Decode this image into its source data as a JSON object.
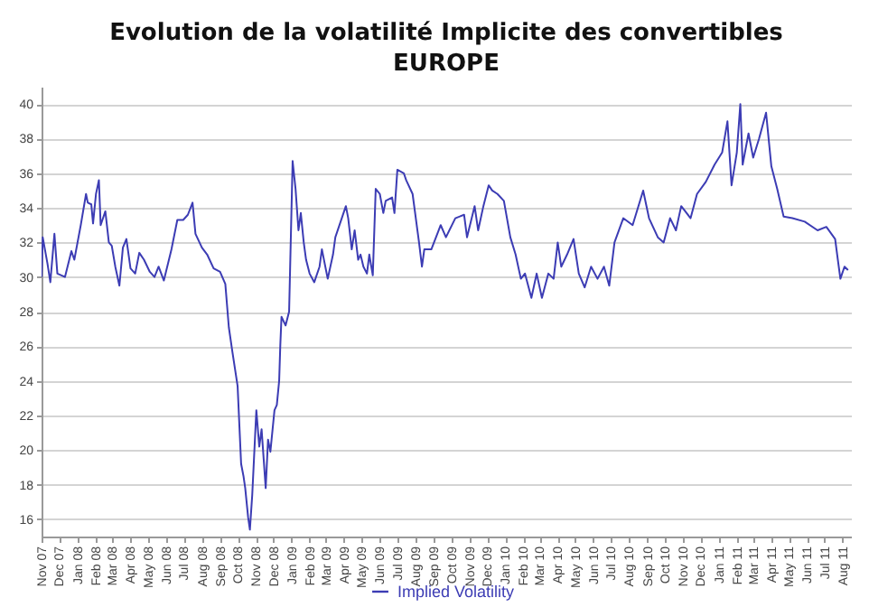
{
  "chart_data": {
    "type": "line",
    "title": "Evolution de la volatilité Implicite des convertibles",
    "subtitle": "EUROPE",
    "x": [
      "2007-11-01",
      "2007-11-03",
      "2007-11-11",
      "2007-11-16",
      "2007-11-23",
      "2007-11-28",
      "2007-12-11",
      "2007-12-22",
      "2007-12-27",
      "2008-01-07",
      "2008-01-16",
      "2008-01-19",
      "2008-01-25",
      "2008-01-28",
      "2008-02-02",
      "2008-02-07",
      "2008-02-10",
      "2008-02-18",
      "2008-02-24",
      "2008-02-29",
      "2008-03-06",
      "2008-03-13",
      "2008-03-19",
      "2008-03-25",
      "2008-04-01",
      "2008-04-09",
      "2008-04-16",
      "2008-04-24",
      "2008-05-04",
      "2008-05-12",
      "2008-05-19",
      "2008-05-28",
      "2008-06-10",
      "2008-06-20",
      "2008-06-30",
      "2008-07-08",
      "2008-07-16",
      "2008-07-21",
      "2008-08-01",
      "2008-08-10",
      "2008-08-21",
      "2008-09-01",
      "2008-09-10",
      "2008-09-16",
      "2008-09-22",
      "2008-10-01",
      "2008-10-07",
      "2008-10-11",
      "2008-10-14",
      "2008-10-19",
      "2008-10-22",
      "2008-10-26",
      "2008-11-02",
      "2008-11-07",
      "2008-11-11",
      "2008-11-18",
      "2008-11-22",
      "2008-11-26",
      "2008-12-03",
      "2008-12-07",
      "2008-12-11",
      "2008-12-13",
      "2008-12-15",
      "2008-12-22",
      "2008-12-28",
      "2009-01-03",
      "2009-01-08",
      "2009-01-13",
      "2009-01-17",
      "2009-01-22",
      "2009-01-26",
      "2009-02-01",
      "2009-02-09",
      "2009-02-18",
      "2009-02-22",
      "2009-03-04",
      "2009-03-13",
      "2009-03-17",
      "2009-03-28",
      "2009-04-04",
      "2009-04-08",
      "2009-04-14",
      "2009-04-19",
      "2009-04-25",
      "2009-04-29",
      "2009-05-04",
      "2009-05-10",
      "2009-05-14",
      "2009-05-20",
      "2009-05-25",
      "2009-06-01",
      "2009-06-07",
      "2009-06-11",
      "2009-06-22",
      "2009-06-26",
      "2009-07-01",
      "2009-07-12",
      "2009-07-16",
      "2009-07-27",
      "2009-08-07",
      "2009-08-12",
      "2009-08-16",
      "2009-08-28",
      "2009-09-13",
      "2009-09-22",
      "2009-10-08",
      "2009-10-23",
      "2009-10-28",
      "2009-11-10",
      "2009-11-16",
      "2009-11-25",
      "2009-12-04",
      "2009-12-10",
      "2009-12-19",
      "2009-12-30",
      "2010-01-10",
      "2010-01-19",
      "2010-01-28",
      "2010-02-04",
      "2010-02-15",
      "2010-02-24",
      "2010-03-05",
      "2010-03-16",
      "2010-03-25",
      "2010-04-01",
      "2010-04-07",
      "2010-04-17",
      "2010-04-28",
      "2010-05-07",
      "2010-05-17",
      "2010-05-28",
      "2010-06-08",
      "2010-06-19",
      "2010-06-28",
      "2010-07-07",
      "2010-07-22",
      "2010-08-07",
      "2010-08-25",
      "2010-09-04",
      "2010-09-19",
      "2010-09-29",
      "2010-10-10",
      "2010-10-20",
      "2010-10-29",
      "2010-11-14",
      "2010-11-25",
      "2010-12-10",
      "2010-12-25",
      "2011-01-07",
      "2011-01-16",
      "2011-01-23",
      "2011-02-01",
      "2011-02-07",
      "2011-02-11",
      "2011-02-21",
      "2011-03-01",
      "2011-03-11",
      "2011-03-23",
      "2011-04-01",
      "2011-04-11",
      "2011-04-22",
      "2011-05-07",
      "2011-05-28",
      "2011-06-19",
      "2011-07-04",
      "2011-07-19",
      "2011-07-24",
      "2011-07-28",
      "2011-08-04",
      "2011-08-10"
    ],
    "series": [
      {
        "name": "Implied Volatility",
        "color": "#3c3cb4",
        "values": [
          30,
          32.3,
          30.8,
          29.7,
          32.5,
          30.2,
          30.0,
          31.5,
          31.0,
          33.0,
          34.8,
          34.3,
          34.2,
          33.1,
          34.8,
          35.6,
          33.0,
          33.8,
          32.0,
          31.8,
          30.6,
          29.5,
          31.7,
          32.2,
          30.5,
          30.2,
          31.4,
          31.0,
          30.3,
          30.0,
          30.6,
          29.8,
          31.6,
          33.3,
          33.3,
          33.6,
          34.3,
          32.5,
          31.7,
          31.3,
          30.5,
          30.3,
          29.6,
          27.1,
          25.7,
          23.7,
          19.2,
          18.5,
          17.8,
          16.1,
          15.4,
          17.4,
          22.3,
          20.2,
          21.2,
          17.8,
          20.6,
          19.9,
          22.3,
          22.6,
          24.0,
          26.1,
          27.7,
          27.2,
          28.0,
          36.7,
          35.1,
          32.7,
          33.7,
          32.0,
          31.0,
          30.2,
          29.7,
          30.6,
          31.6,
          29.9,
          31.3,
          32.3,
          33.4,
          34.1,
          33.4,
          31.6,
          32.7,
          31.0,
          31.3,
          30.6,
          30.2,
          31.3,
          30.1,
          35.1,
          34.8,
          33.7,
          34.4,
          34.6,
          33.7,
          36.2,
          36.0,
          35.6,
          34.8,
          32.0,
          30.6,
          31.6,
          31.6,
          33.0,
          32.3,
          33.4,
          33.6,
          32.3,
          34.1,
          32.7,
          34.1,
          35.3,
          35.0,
          34.8,
          34.4,
          32.3,
          31.3,
          29.9,
          30.2,
          28.8,
          30.2,
          28.8,
          30.2,
          29.9,
          32.0,
          30.6,
          31.3,
          32.2,
          30.2,
          29.4,
          30.6,
          29.9,
          30.6,
          29.5,
          32.0,
          33.4,
          33.0,
          35.0,
          33.4,
          32.3,
          32.0,
          33.4,
          32.7,
          34.1,
          33.4,
          34.8,
          35.5,
          36.5,
          37.2,
          39.0,
          35.3,
          37.2,
          40.0,
          36.5,
          38.3,
          36.9,
          38.0,
          39.5,
          36.4,
          35.1,
          33.5,
          33.4,
          33.2,
          32.7,
          32.9,
          32.2,
          30.9,
          29.9,
          30.6,
          30.4
        ]
      }
    ],
    "xlim": [
      "2007-11-01",
      "2011-08-15"
    ],
    "xticks": [
      {
        "value": "2007-11",
        "label": "Nov 07"
      },
      {
        "value": "2007-12",
        "label": "Dec 07"
      },
      {
        "value": "2008-01",
        "label": "Jan 08"
      },
      {
        "value": "2008-02",
        "label": "Feb 08"
      },
      {
        "value": "2008-03",
        "label": "Mar 08"
      },
      {
        "value": "2008-04",
        "label": "Apr 08"
      },
      {
        "value": "2008-05",
        "label": "May 08"
      },
      {
        "value": "2008-06",
        "label": "Jun 08"
      },
      {
        "value": "2008-07",
        "label": "Jul 08"
      },
      {
        "value": "2008-08",
        "label": "Aug 08"
      },
      {
        "value": "2008-09",
        "label": "Sep 08"
      },
      {
        "value": "2008-10",
        "label": "Oct 08"
      },
      {
        "value": "2008-11",
        "label": "Nov 08"
      },
      {
        "value": "2008-12",
        "label": "Dec 08"
      },
      {
        "value": "2009-01",
        "label": "Jan 09"
      },
      {
        "value": "2009-02",
        "label": "Feb 09"
      },
      {
        "value": "2009-03",
        "label": "Mar 09"
      },
      {
        "value": "2009-04",
        "label": "Apr 09"
      },
      {
        "value": "2009-05",
        "label": "May 09"
      },
      {
        "value": "2009-06",
        "label": "Jun 09"
      },
      {
        "value": "2009-07",
        "label": "Jul 09"
      },
      {
        "value": "2009-08",
        "label": "Aug 09"
      },
      {
        "value": "2009-09",
        "label": "Sep 09"
      },
      {
        "value": "2009-10",
        "label": "Oct 09"
      },
      {
        "value": "2009-11",
        "label": "Nov 09"
      },
      {
        "value": "2009-12",
        "label": "Dec 09"
      },
      {
        "value": "2010-01",
        "label": "Jan 10"
      },
      {
        "value": "2010-02",
        "label": "Feb 10"
      },
      {
        "value": "2010-03",
        "label": "Mar 10"
      },
      {
        "value": "2010-04",
        "label": "Apr 10"
      },
      {
        "value": "2010-05",
        "label": "May 10"
      },
      {
        "value": "2010-06",
        "label": "Jun 10"
      },
      {
        "value": "2010-07",
        "label": "Jul 10"
      },
      {
        "value": "2010-08",
        "label": "Aug 10"
      },
      {
        "value": "2010-09",
        "label": "Sep 10"
      },
      {
        "value": "2010-10",
        "label": "Oct 10"
      },
      {
        "value": "2010-11",
        "label": "Nov 10"
      },
      {
        "value": "2010-12",
        "label": "Dec 10"
      },
      {
        "value": "2011-01",
        "label": "Jan 11"
      },
      {
        "value": "2011-02",
        "label": "Feb 11"
      },
      {
        "value": "2011-03",
        "label": "Mar 11"
      },
      {
        "value": "2011-04",
        "label": "Apr 11"
      },
      {
        "value": "2011-05",
        "label": "May 11"
      },
      {
        "value": "2011-06",
        "label": "Jun 11"
      },
      {
        "value": "2011-07",
        "label": "Jul 11"
      },
      {
        "value": "2011-08",
        "label": "Aug 11"
      }
    ],
    "ylim": [
      15,
      41
    ],
    "yticks": [
      16,
      18,
      20,
      22,
      24,
      26,
      28,
      30,
      32,
      34,
      36,
      38,
      40
    ],
    "grid": "y",
    "legend": "bottom"
  }
}
